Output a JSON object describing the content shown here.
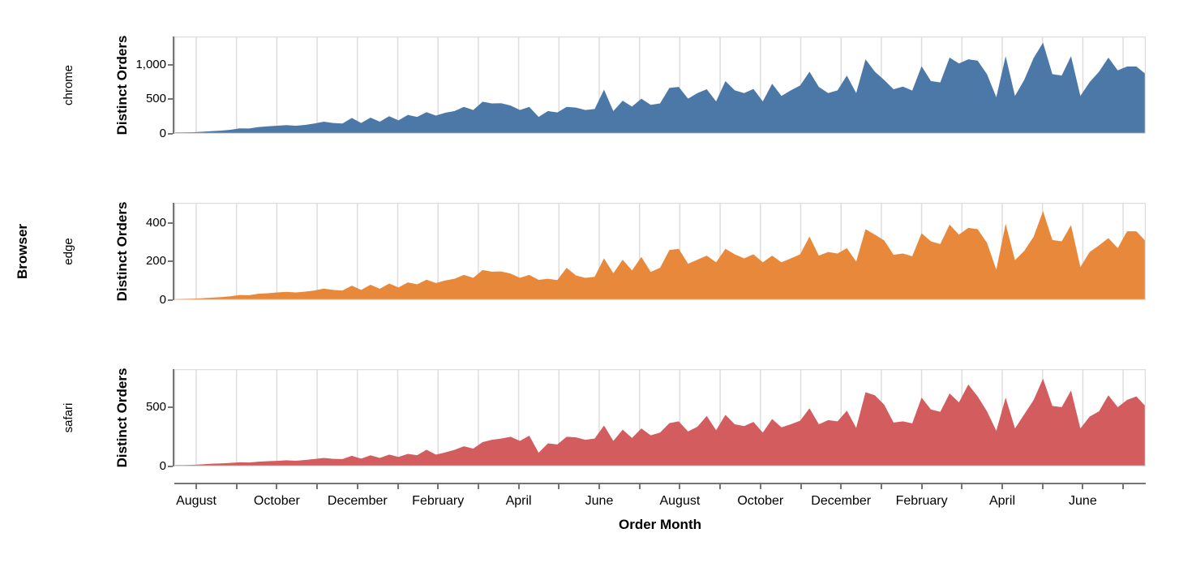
{
  "figure": {
    "row_title": "Browser",
    "x_title": "Order Month",
    "y_title": "Distinct Orders"
  },
  "chart_data": {
    "type": "area",
    "title": "",
    "xlabel": "Order Month",
    "ylabel": "Distinct Orders",
    "row_label": "Browser",
    "legend": "none",
    "grid": "vertical-monthly-gridlines",
    "x": {
      "unit": "week",
      "points_per_series": 105,
      "months_spanned": 24,
      "month_tick_count": 24,
      "tick_labels": [
        "August",
        "October",
        "December",
        "February",
        "April",
        "June",
        "August",
        "October",
        "December",
        "February",
        "April",
        "June"
      ],
      "note_span": "weekly points from mid-July of year 1 through late July of year 3"
    },
    "facets": [
      {
        "browser": "chrome",
        "color": "#4c78a8",
        "y_max": 1410,
        "y_tick_values": [
          0,
          500,
          1000
        ],
        "y_tick_labels": [
          "0",
          "500",
          "1,000"
        ],
        "values": [
          20,
          20,
          24,
          31,
          39,
          47,
          59,
          80,
          78,
          98,
          108,
          118,
          126,
          118,
          130,
          150,
          177,
          157,
          150,
          230,
          157,
          235,
          176,
          255,
          196,
          274,
          245,
          315,
          265,
          305,
          330,
          390,
          345,
          465,
          440,
          443,
          410,
          345,
          390,
          245,
          330,
          310,
          390,
          380,
          345,
          360,
          640,
          330,
          480,
          395,
          510,
          420,
          440,
          665,
          680,
          510,
          590,
          647,
          470,
          764,
          630,
          590,
          650,
          470,
          725,
          550,
          630,
          700,
          900,
          680,
          590,
          630,
          845,
          590,
          1080,
          900,
          780,
          647,
          685,
          627,
          980,
          765,
          745,
          1105,
          1020,
          1080,
          1060,
          865,
          530,
          1125,
          550,
          785,
          1100,
          1320,
          865,
          845,
          1125,
          550,
          750,
          900,
          1105,
          920,
          975,
          975,
          865
        ]
      },
      {
        "browser": "edge",
        "color": "#e8883a",
        "y_max": 505,
        "y_tick_values": [
          0,
          200,
          400
        ],
        "y_tick_labels": [
          "0",
          "200",
          "400"
        ],
        "values": [
          6,
          7,
          8,
          10,
          13,
          16,
          20,
          27,
          26,
          33,
          36,
          40,
          43,
          40,
          44,
          50,
          60,
          53,
          50,
          75,
          53,
          80,
          59,
          86,
          66,
          92,
          82,
          106,
          89,
          102,
          111,
          131,
          116,
          156,
          148,
          149,
          138,
          116,
          131,
          105,
          111,
          104,
          168,
          128,
          116,
          121,
          217,
          140,
          210,
          154,
          224,
          147,
          168,
          260,
          266,
          189,
          210,
          231,
          196,
          266,
          238,
          217,
          238,
          196,
          231,
          196,
          217,
          238,
          330,
          231,
          250,
          242,
          270,
          200,
          368,
          340,
          310,
          235,
          242,
          228,
          347,
          305,
          291,
          392,
          340,
          375,
          368,
          298,
          158,
          396,
          207,
          256,
          330,
          462,
          312,
          305,
          389,
          172,
          250,
          284,
          322,
          270,
          357,
          357,
          305
        ]
      },
      {
        "browser": "safari",
        "color": "#d25c5e",
        "y_max": 820,
        "y_tick_values": [
          0,
          500
        ],
        "y_tick_labels": [
          "0",
          "500"
        ],
        "values": [
          12,
          12,
          14,
          18,
          23,
          26,
          30,
          35,
          33,
          40,
          44,
          47,
          52,
          48,
          55,
          62,
          72,
          64,
          62,
          90,
          66,
          94,
          72,
          100,
          80,
          106,
          95,
          141,
          100,
          118,
          140,
          170,
          150,
          205,
          225,
          235,
          250,
          215,
          260,
          115,
          195,
          185,
          250,
          245,
          225,
          235,
          345,
          215,
          310,
          240,
          320,
          262,
          285,
          365,
          380,
          295,
          335,
          425,
          305,
          435,
          355,
          340,
          375,
          285,
          400,
          330,
          355,
          385,
          490,
          355,
          390,
          380,
          470,
          325,
          625,
          600,
          520,
          370,
          380,
          363,
          580,
          480,
          460,
          615,
          540,
          690,
          590,
          465,
          300,
          580,
          320,
          440,
          560,
          740,
          510,
          500,
          640,
          320,
          420,
          465,
          600,
          500,
          560,
          590,
          505
        ]
      }
    ],
    "colors": {
      "chrome": "#4c78a8",
      "edge": "#e8883a",
      "safari": "#d25c5e",
      "gridline": "#dddddd",
      "plot_border": "#dddddd",
      "axis_domain": "#757575",
      "text": "#000000"
    }
  }
}
